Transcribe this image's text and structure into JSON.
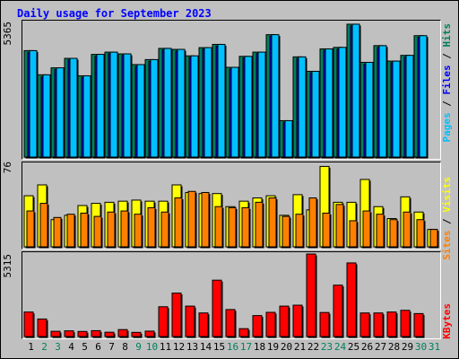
{
  "title": "Daily usage for September 2023",
  "colors": {
    "pages": "#00c0ff",
    "files": "#0000ff",
    "hits": "#00805c",
    "sites": "#ff8000",
    "visits": "#ffff00",
    "kbytes": "#ff0000",
    "weekday_label": "#000000",
    "weekend_label": "#00805c"
  },
  "legends": {
    "panel1": [
      {
        "text": "Pages",
        "color_key": "pages"
      },
      {
        "text": " / ",
        "color_key": "weekday_label"
      },
      {
        "text": "Files",
        "color_key": "files"
      },
      {
        "text": " / ",
        "color_key": "weekday_label"
      },
      {
        "text": "Hits",
        "color_key": "hits"
      }
    ],
    "panel2": [
      {
        "text": "Sites",
        "color_key": "sites"
      },
      {
        "text": " / ",
        "color_key": "weekday_label"
      },
      {
        "text": "Visits",
        "color_key": "visits"
      }
    ],
    "panel3": [
      {
        "text": "KBytes",
        "color_key": "kbytes"
      }
    ]
  },
  "chart_data": [
    {
      "type": "bar",
      "panel": "hits_files_pages",
      "y_max_label": "5365",
      "ylim": [
        0,
        5365
      ],
      "categories": [
        "1",
        "2",
        "3",
        "4",
        "5",
        "6",
        "7",
        "8",
        "9",
        "10",
        "11",
        "12",
        "13",
        "14",
        "15",
        "16",
        "17",
        "18",
        "19",
        "20",
        "21",
        "22",
        "23",
        "24",
        "25",
        "26",
        "27",
        "28",
        "29",
        "30",
        "31"
      ],
      "weekend_days": [
        "2",
        "3",
        "9",
        "10",
        "16",
        "17",
        "23",
        "24",
        "30",
        "31"
      ],
      "series": [
        {
          "name": "Hits",
          "color_key": "hits",
          "values": [
            4270,
            3300,
            3580,
            3960,
            3260,
            4120,
            4210,
            4140,
            3710,
            3910,
            4360,
            4320,
            4060,
            4390,
            4520,
            3600,
            4040,
            4210,
            4910,
            1460,
            4020,
            3440,
            4340,
            4400,
            5330,
            3800,
            4470,
            3850,
            4080,
            4870,
            0
          ]
        },
        {
          "name": "Files",
          "color_key": "files",
          "values": [
            4200,
            3220,
            3510,
            3900,
            3200,
            4050,
            4150,
            4080,
            3640,
            3840,
            4300,
            4250,
            4000,
            4330,
            4450,
            3530,
            3980,
            4150,
            4850,
            1400,
            3960,
            3380,
            4280,
            4330,
            5260,
            3730,
            4400,
            3790,
            4010,
            4800,
            0
          ]
        },
        {
          "name": "Pages",
          "color_key": "pages",
          "values": [
            4270,
            3300,
            3580,
            3960,
            3260,
            4120,
            4210,
            4140,
            3710,
            3910,
            4360,
            4320,
            4060,
            4390,
            4520,
            3600,
            4040,
            4210,
            4910,
            1460,
            4020,
            3440,
            4340,
            4400,
            5330,
            3800,
            4470,
            3850,
            4080,
            4870,
            0
          ]
        }
      ]
    },
    {
      "type": "bar",
      "panel": "visits_sites",
      "y_max_label": "76",
      "ylim": [
        0,
        76
      ],
      "series": [
        {
          "name": "Visits",
          "color_key": "visits",
          "values": [
            47,
            57,
            25,
            29,
            38,
            40,
            41,
            42,
            43,
            42,
            42,
            57,
            50,
            49,
            49,
            37,
            42,
            45,
            47,
            29,
            48,
            34,
            74,
            41,
            41,
            62,
            37,
            26,
            46,
            32,
            16
          ]
        },
        {
          "name": "Sites",
          "color_key": "sites",
          "values": [
            33,
            40,
            27,
            30,
            31,
            28,
            32,
            33,
            30,
            36,
            32,
            45,
            51,
            50,
            37,
            36,
            36,
            41,
            45,
            28,
            30,
            45,
            31,
            39,
            24,
            33,
            30,
            25,
            32,
            25,
            16
          ]
        }
      ]
    },
    {
      "type": "bar",
      "panel": "kbytes",
      "y_max_label": "5315",
      "ylim": [
        0,
        5315
      ],
      "series": [
        {
          "name": "KBytes",
          "color_key": "kbytes",
          "values": [
            1580,
            1130,
            340,
            370,
            330,
            380,
            280,
            450,
            270,
            350,
            1920,
            2800,
            1960,
            1520,
            3630,
            1740,
            510,
            1350,
            1560,
            1960,
            2020,
            5315,
            1550,
            3310,
            4740,
            1520,
            1520,
            1580,
            1690,
            1480,
            0
          ]
        }
      ]
    }
  ]
}
